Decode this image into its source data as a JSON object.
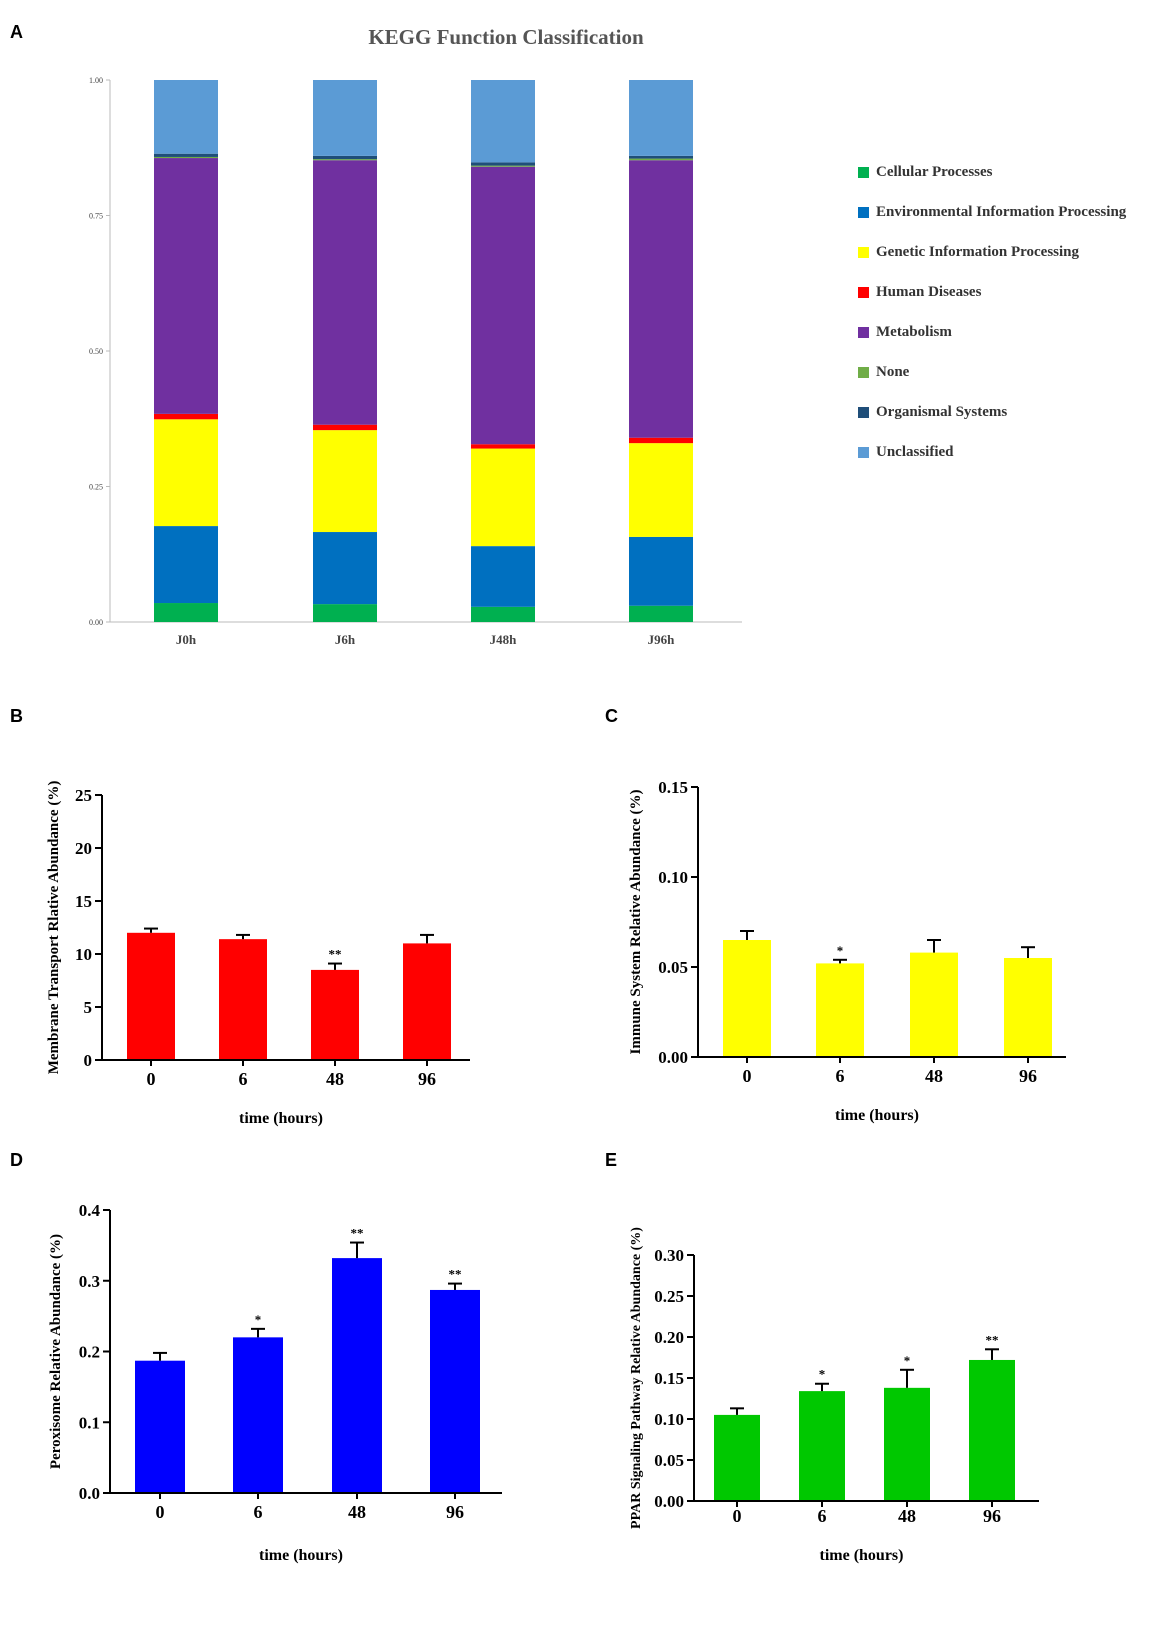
{
  "panels": {
    "a": "A",
    "b": "B",
    "c": "C",
    "d": "D",
    "e": "E"
  },
  "chart_data": [
    {
      "id": "A",
      "type": "bar",
      "stacked": true,
      "title": "KEGG Function Classification",
      "categories": [
        "J0h",
        "J6h",
        "J48h",
        "J96h"
      ],
      "ylim": [
        0,
        1
      ],
      "yticks": [
        "0.00",
        "0.25",
        "0.50",
        "0.75",
        "1.00"
      ],
      "legend_position": "right",
      "series": [
        {
          "name": "Cellular Processes",
          "color": "#00b050",
          "values": [
            0.035,
            0.033,
            0.028,
            0.03
          ]
        },
        {
          "name": "Environmental Information Processing",
          "color": "#0070c0",
          "values": [
            0.142,
            0.133,
            0.112,
            0.127
          ]
        },
        {
          "name": "Genetic Information Processing",
          "color": "#ffff00",
          "values": [
            0.197,
            0.188,
            0.18,
            0.173
          ]
        },
        {
          "name": "Human Diseases",
          "color": "#ff0000",
          "values": [
            0.01,
            0.01,
            0.008,
            0.01
          ]
        },
        {
          "name": "Metabolism",
          "color": "#7030a0",
          "values": [
            0.472,
            0.488,
            0.512,
            0.512
          ]
        },
        {
          "name": "None",
          "color": "#70ad47",
          "values": [
            0.002,
            0.002,
            0.002,
            0.003
          ]
        },
        {
          "name": "Organismal Systems",
          "color": "#1f4e79",
          "values": [
            0.006,
            0.006,
            0.006,
            0.005
          ]
        },
        {
          "name": "Unclassified",
          "color": "#5b9bd5",
          "values": [
            0.136,
            0.14,
            0.152,
            0.14
          ]
        }
      ]
    },
    {
      "id": "B",
      "type": "bar",
      "categories": [
        "0",
        "6",
        "48",
        "96"
      ],
      "values": [
        12.0,
        11.4,
        8.5,
        11.0
      ],
      "errors": [
        0.4,
        0.4,
        0.6,
        0.8
      ],
      "significance": [
        "",
        "",
        "**",
        ""
      ],
      "ylabel": "Membrane Transport Rlative Abundance (%)",
      "xlabel": "time (hours)",
      "ylim": [
        0,
        25
      ],
      "yticks": [
        "0",
        "5",
        "10",
        "15",
        "20",
        "25"
      ],
      "color": "#ff0000"
    },
    {
      "id": "C",
      "type": "bar",
      "categories": [
        "0",
        "6",
        "48",
        "96"
      ],
      "values": [
        0.065,
        0.052,
        0.058,
        0.055
      ],
      "errors": [
        0.005,
        0.002,
        0.007,
        0.006
      ],
      "significance": [
        "",
        "*",
        "",
        ""
      ],
      "ylabel": "Immune System Relative Abundance (%)",
      "xlabel": "time (hours)",
      "ylim": [
        0,
        0.15
      ],
      "yticks": [
        "0.00",
        "0.05",
        "0.10",
        "0.15"
      ],
      "color": "#ffff00"
    },
    {
      "id": "D",
      "type": "bar",
      "categories": [
        "0",
        "6",
        "48",
        "96"
      ],
      "values": [
        0.187,
        0.22,
        0.332,
        0.287
      ],
      "errors": [
        0.011,
        0.012,
        0.022,
        0.009
      ],
      "significance": [
        "",
        "*",
        "**",
        "**"
      ],
      "ylabel": "Peroxisome Relative Abundance (%)",
      "xlabel": "time (hours)",
      "ylim": [
        0,
        0.4
      ],
      "yticks": [
        "0.0",
        "0.1",
        "0.2",
        "0.3",
        "0.4"
      ],
      "color": "#0000ff"
    },
    {
      "id": "E",
      "type": "bar",
      "categories": [
        "0",
        "6",
        "48",
        "96"
      ],
      "values": [
        0.105,
        0.134,
        0.138,
        0.172
      ],
      "errors": [
        0.008,
        0.009,
        0.022,
        0.013
      ],
      "significance": [
        "",
        "*",
        "*",
        "**"
      ],
      "ylabel": "PPAR Signaling Pathway Relative Abundance (%)",
      "xlabel": "time (hours)",
      "ylim": [
        0,
        0.3
      ],
      "yticks": [
        "0.00",
        "0.05",
        "0.10",
        "0.15",
        "0.20",
        "0.25",
        "0.30"
      ],
      "color": "#00c800"
    }
  ]
}
